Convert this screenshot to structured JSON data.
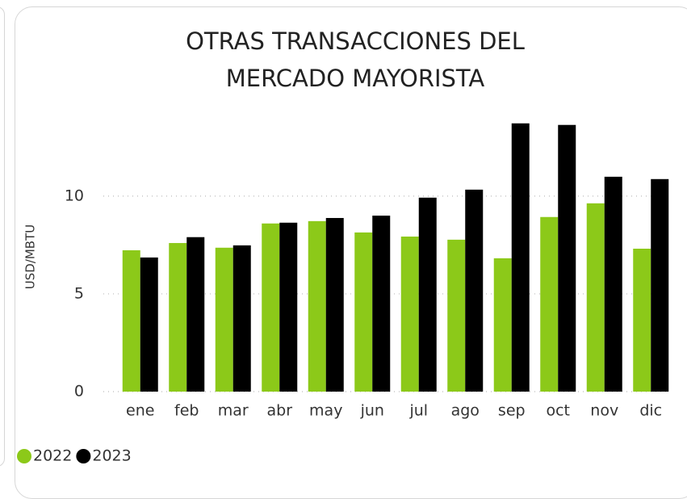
{
  "chart_data": {
    "type": "bar",
    "title": "OTRAS TRANSACCIONES DEL MERCADO MAYORISTA",
    "y_label": "USD/MBTU",
    "categories": [
      "ene",
      "feb",
      "mar",
      "abr",
      "may",
      "jun",
      "jul",
      "ago",
      "sep",
      "oct",
      "nov",
      "dic"
    ],
    "series": [
      {
        "name": "2022",
        "color": "#8cc919",
        "values": [
          7.23,
          7.6,
          7.36,
          8.6,
          8.72,
          8.14,
          7.93,
          7.77,
          6.82,
          8.93,
          9.63,
          7.31
        ]
      },
      {
        "name": "2023",
        "color": "#000000",
        "values": [
          6.86,
          7.9,
          7.48,
          8.64,
          8.88,
          9.0,
          9.92,
          10.33,
          13.72,
          13.64,
          10.99,
          10.87
        ]
      }
    ],
    "ylim": [
      0,
      14
    ],
    "yticks": [
      0,
      5,
      10
    ],
    "grid": true,
    "legend": "bottom-left"
  }
}
